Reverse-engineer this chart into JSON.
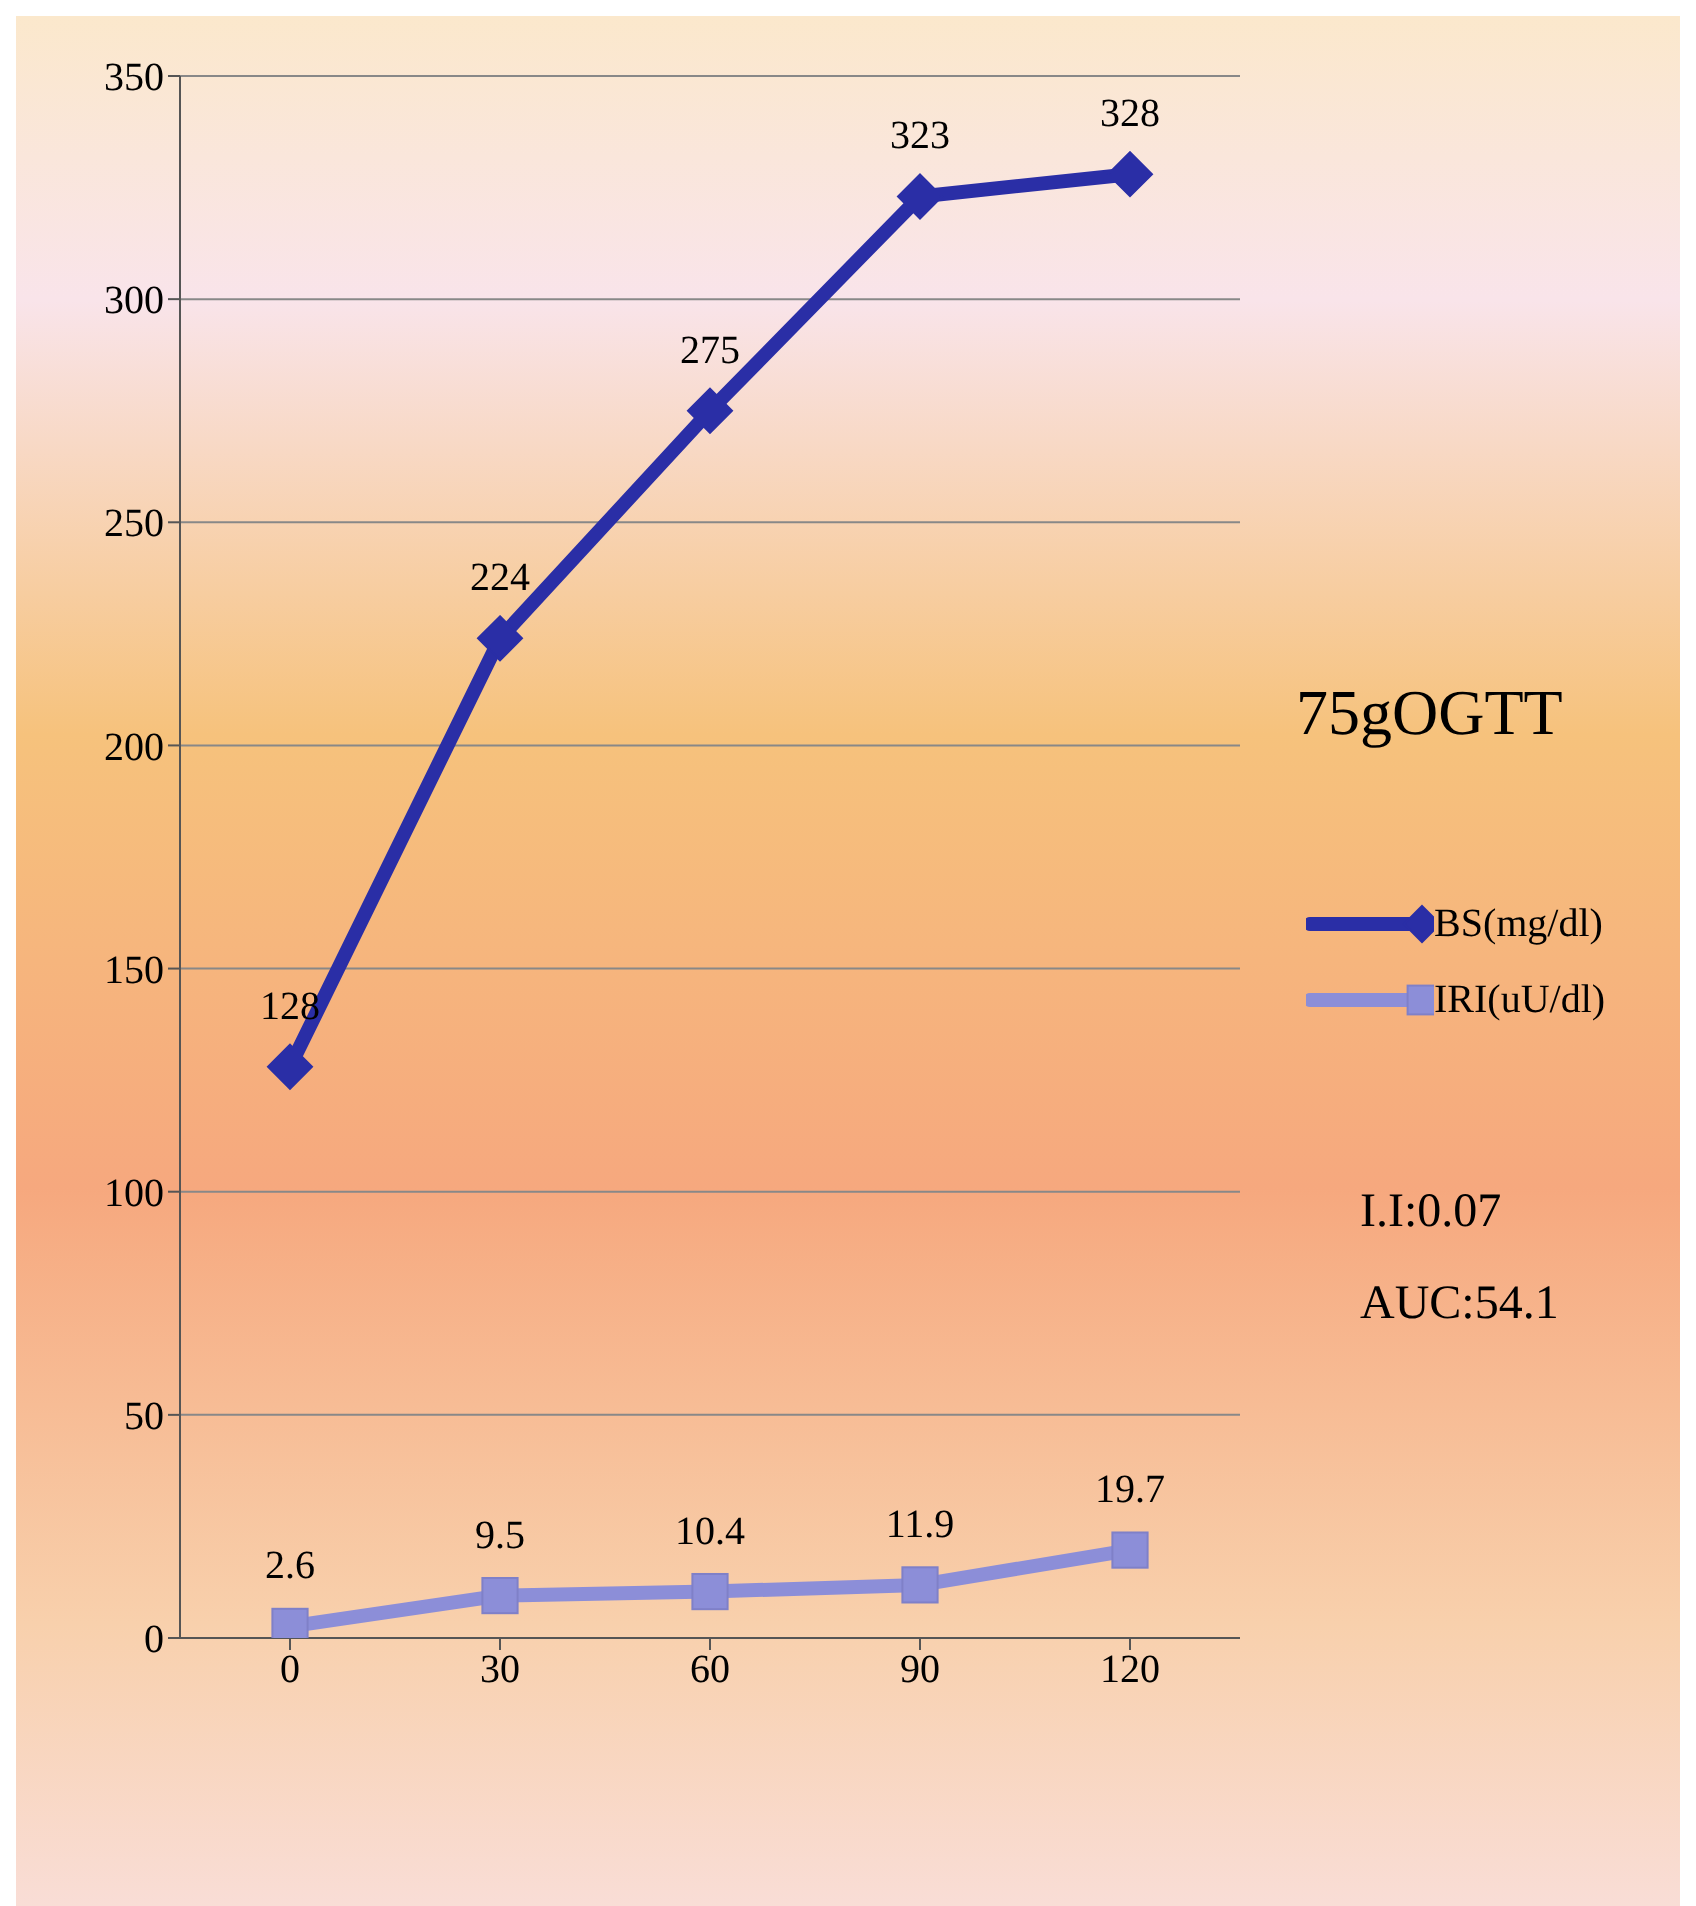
{
  "chart_data": {
    "type": "line",
    "title": "75gOGTT",
    "categories": [
      "0",
      "30",
      "60",
      "90",
      "120"
    ],
    "series": [
      {
        "name": "BS(mg/dl)",
        "color": "#2a2ea6",
        "values": [
          128,
          224,
          275,
          323,
          328
        ],
        "marker": "diamond"
      },
      {
        "name": "IRI(uU/dl)",
        "color": "#8c8ed8",
        "values": [
          2.6,
          9.5,
          10.4,
          11.9,
          19.7
        ],
        "marker": "square"
      }
    ],
    "ylim": [
      0,
      350
    ],
    "yticks": [
      0,
      50,
      100,
      150,
      200,
      250,
      300,
      350
    ],
    "grid": "y",
    "legend": "right",
    "data_labels": true,
    "line_style": "solid",
    "annotations": [
      "I.I:0.07",
      "AUC:54.1"
    ]
  }
}
